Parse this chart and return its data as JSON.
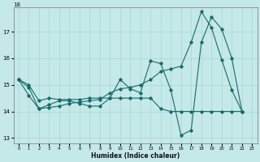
{
  "title": "",
  "xlabel": "Humidex (Indice chaleur)",
  "background_color": "#c5e8e8",
  "grid_color": "#a8d8d8",
  "line_color": "#1a6b6b",
  "xlim": [
    -0.5,
    23.5
  ],
  "ylim": [
    12.8,
    17.9
  ],
  "yticks": [
    13,
    14,
    15,
    16,
    17
  ],
  "ytick_top": "18",
  "xtick_labels": [
    "0",
    "1",
    "2",
    "3",
    "4",
    "5",
    "6",
    "7",
    "8",
    "9",
    "10",
    "11",
    "12",
    "13",
    "14",
    "15",
    "16",
    "17",
    "18",
    "19",
    "20",
    "21",
    "22",
    "23"
  ],
  "series1_x": [
    0,
    1,
    2,
    3,
    4,
    5,
    6,
    7,
    8,
    9,
    10,
    11,
    12,
    13,
    14,
    15,
    16,
    17,
    18,
    19,
    20,
    21,
    22
  ],
  "series1_y": [
    15.2,
    14.9,
    14.1,
    14.25,
    14.4,
    14.4,
    14.3,
    14.2,
    14.2,
    14.5,
    15.2,
    14.85,
    14.7,
    15.9,
    15.8,
    14.8,
    13.1,
    13.3,
    16.6,
    17.55,
    17.1,
    16.0,
    14.0
  ],
  "series2_x": [
    0,
    1,
    2,
    3,
    4,
    5,
    6,
    7,
    8,
    9,
    10,
    11,
    12,
    13,
    14,
    15,
    16,
    17,
    18,
    19,
    20,
    21,
    22
  ],
  "series2_y": [
    15.2,
    15.0,
    14.4,
    14.5,
    14.45,
    14.45,
    14.45,
    14.5,
    14.5,
    14.5,
    14.5,
    14.5,
    14.5,
    14.5,
    14.1,
    14.0,
    14.0,
    14.0,
    14.0,
    14.0,
    14.0,
    14.0,
    14.0
  ],
  "series3_x": [
    0,
    1,
    2,
    3,
    4,
    5,
    6,
    7,
    8,
    9,
    10,
    11,
    12,
    13,
    14,
    15,
    16,
    17,
    18,
    19,
    20,
    21,
    22
  ],
  "series3_y": [
    15.2,
    14.6,
    14.1,
    14.15,
    14.2,
    14.3,
    14.35,
    14.4,
    14.45,
    14.7,
    14.85,
    14.9,
    15.0,
    15.2,
    15.5,
    15.6,
    15.7,
    16.6,
    17.75,
    17.15,
    15.95,
    14.8,
    14.0
  ]
}
